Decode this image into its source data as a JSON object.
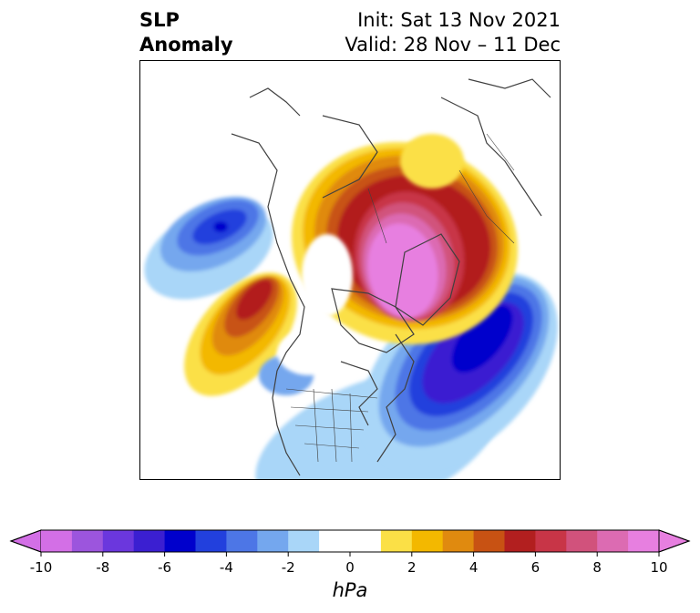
{
  "title": {
    "variable": "SLP",
    "kind": "Anomaly",
    "init": "Init: Sat 13 Nov 2021",
    "valid": "Valid: 28 Nov – 11 Dec"
  },
  "colorbar": {
    "unit": "hPa",
    "min": -10,
    "max": 10,
    "step": 1,
    "ticks": [
      "-10",
      "-8",
      "-6",
      "-4",
      "-2",
      "0",
      "2",
      "4",
      "6",
      "8",
      "10"
    ],
    "colors": [
      "#d36fe6",
      "#9c55dd",
      "#6b37dd",
      "#3b1fd1",
      "#0000cc",
      "#2240dd",
      "#4d76e6",
      "#74a7ee",
      "#a9d6f8",
      "#ffffff",
      "#ffffff",
      "#fbe046",
      "#f3b800",
      "#e08a0f",
      "#c85213",
      "#b21f1f",
      "#c83547",
      "#d1527c",
      "#dc6bb2",
      "#e77fe0"
    ]
  },
  "map": {
    "projection": "north-polar-stereographic",
    "features": [
      "coastlines",
      "country-borders",
      "us-state-borders"
    ]
  }
}
